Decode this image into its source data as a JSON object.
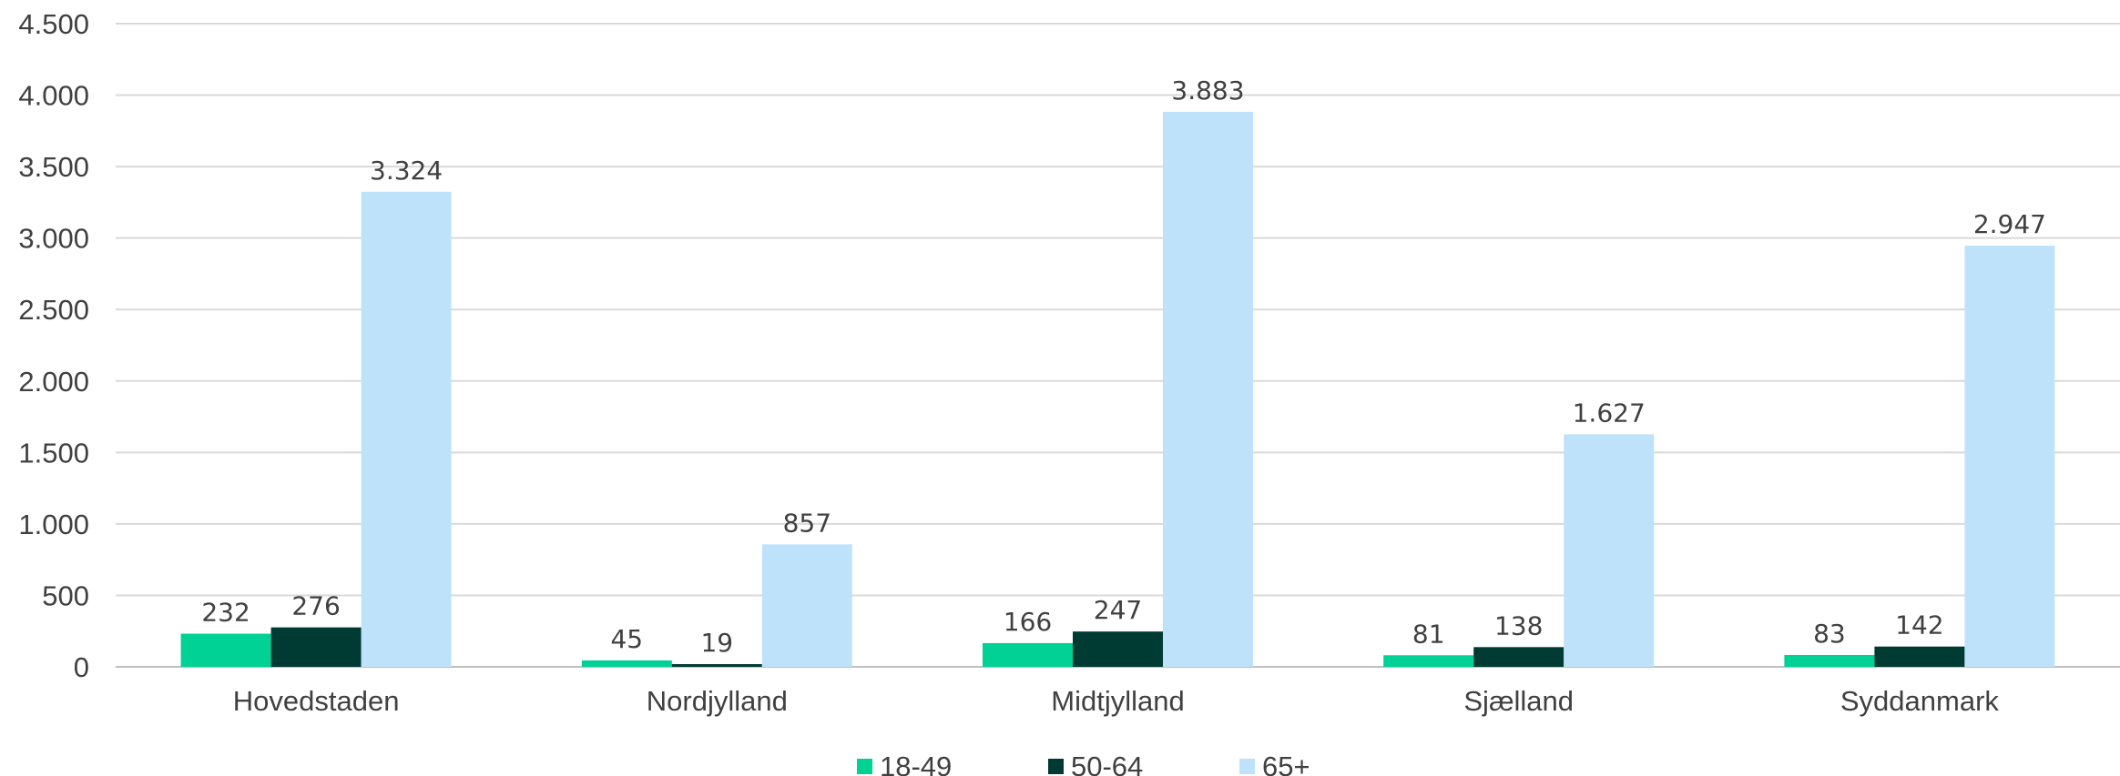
{
  "chart_data": {
    "type": "bar",
    "categories": [
      "Hovedstaden",
      "Nordjylland",
      "Midtjylland",
      "Sjælland",
      "Syddanmark"
    ],
    "series": [
      {
        "name": "18-49",
        "color": "#00d195",
        "values": [
          232,
          45,
          166,
          81,
          83
        ]
      },
      {
        "name": "50-64",
        "color": "#003b33",
        "values": [
          276,
          19,
          247,
          138,
          142
        ]
      },
      {
        "name": "65+",
        "color": "#bfe2fb",
        "values": [
          3324,
          857,
          3883,
          1627,
          2947
        ]
      }
    ],
    "data_labels": [
      [
        "232",
        "45",
        "166",
        "81",
        "83"
      ],
      [
        "276",
        "19",
        "247",
        "138",
        "142"
      ],
      [
        "3.324",
        "857",
        "3.883",
        "1.627",
        "2.947"
      ]
    ],
    "y_ticks": [
      0,
      500,
      1000,
      1500,
      2000,
      2500,
      3000,
      3500,
      4000,
      4500
    ],
    "y_tick_labels": [
      "0",
      "500",
      "1.000",
      "1.500",
      "2.000",
      "2.500",
      "3.000",
      "3.500",
      "4.000",
      "4.500"
    ],
    "ylim": [
      0,
      4500
    ],
    "grid": true,
    "legend_position": "bottom",
    "title": "",
    "xlabel": "",
    "ylabel": ""
  }
}
